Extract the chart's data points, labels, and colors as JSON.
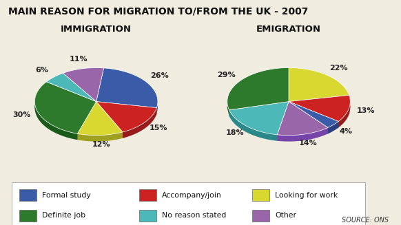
{
  "title": "MAIN REASON FOR MIGRATION TO/FROM THE UK - 2007",
  "immigration_title": "IMMIGRATION",
  "emigration_title": "EMIGRATION",
  "source": "SOURCE: ONS",
  "categories": [
    "Formal study",
    "Accompany/join",
    "Looking for work",
    "Definite job",
    "No reason stated",
    "Other"
  ],
  "colors": [
    "#3a5ca8",
    "#cc2222",
    "#d8d830",
    "#2d7a2d",
    "#4db8b8",
    "#9966aa"
  ],
  "dark_colors": [
    "#2a4080",
    "#991a1a",
    "#a0a020",
    "#1a5a1a",
    "#2a8888",
    "#7744aa"
  ],
  "immigration_values": [
    26,
    15,
    12,
    30,
    6,
    11
  ],
  "emigration_values": [
    22,
    13,
    4,
    14,
    18,
    29
  ],
  "immigration_pct_labels": [
    "26%",
    "15%",
    "12%",
    "30%",
    "6%",
    "11%"
  ],
  "emigration_pct_labels": [
    "22%",
    "13%",
    "4%",
    "14%",
    "18%",
    "29%"
  ],
  "background_color": "#f0ece0",
  "legend_box_color": "#ffffff",
  "title_fontsize": 10,
  "subtitle_fontsize": 9.5,
  "label_fontsize": 8
}
